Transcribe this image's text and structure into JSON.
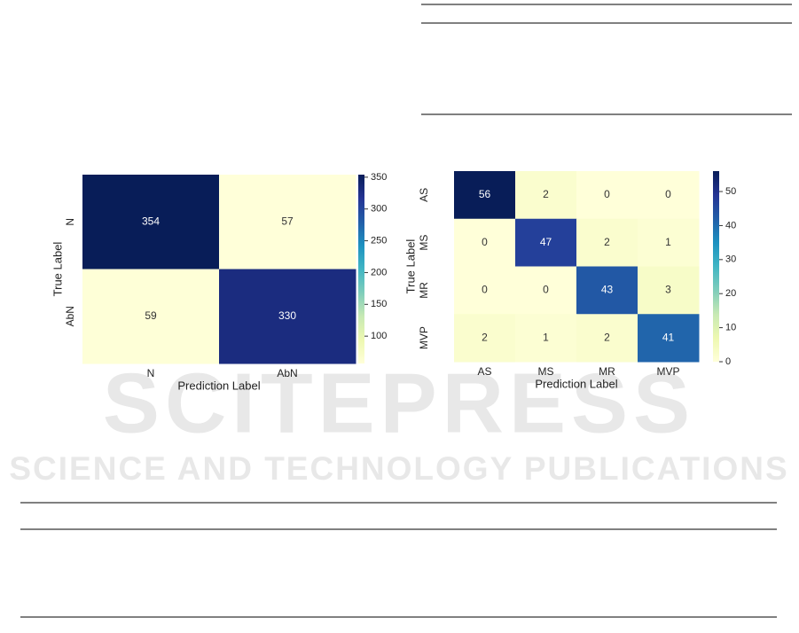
{
  "chart_data": [
    {
      "type": "heatmap",
      "xlabel": "Prediction Label",
      "ylabel": "True Label",
      "x_categories": [
        "N",
        "AbN"
      ],
      "y_categories": [
        "N",
        "AbN"
      ],
      "values": [
        [
          354,
          57
        ],
        [
          59,
          330
        ]
      ],
      "clim": [
        57,
        354
      ],
      "cticks": [
        100,
        150,
        200,
        250,
        300,
        350
      ],
      "colormap": [
        "#ffffd9",
        "#edf8b1",
        "#c7e9b4",
        "#7fcdbb",
        "#41b6c4",
        "#1d91c0",
        "#225ea8",
        "#253494",
        "#081d58"
      ]
    },
    {
      "type": "heatmap",
      "xlabel": "Prediction Label",
      "ylabel": "True Label",
      "x_categories": [
        "AS",
        "MS",
        "MR",
        "MVP"
      ],
      "y_categories": [
        "AS",
        "MS",
        "MR",
        "MVP"
      ],
      "values": [
        [
          56,
          2,
          0,
          0
        ],
        [
          0,
          47,
          2,
          1
        ],
        [
          0,
          0,
          43,
          3
        ],
        [
          2,
          1,
          2,
          41
        ]
      ],
      "clim": [
        0,
        56
      ],
      "cticks": [
        0,
        10,
        20,
        30,
        40,
        50
      ],
      "colormap": [
        "#ffffd9",
        "#edf8b1",
        "#c7e9b4",
        "#7fcdbb",
        "#41b6c4",
        "#1d91c0",
        "#225ea8",
        "#253494",
        "#081d58"
      ]
    }
  ],
  "watermark": {
    "title": "SCITEPRESS",
    "subtitle": "SCIENCE AND TECHNOLOGY PUBLICATIONS"
  }
}
